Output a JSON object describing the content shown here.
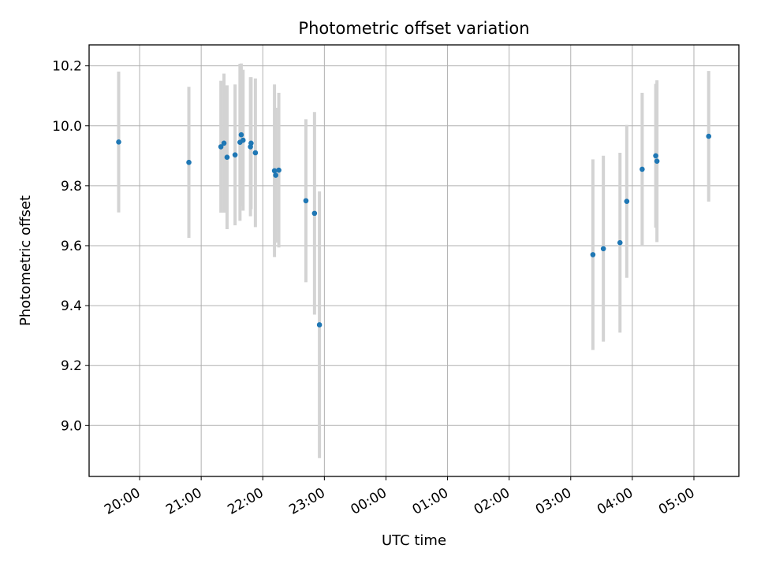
{
  "chart_data": {
    "type": "scatter",
    "title": "Photometric offset variation",
    "xlabel": "UTC time",
    "ylabel": "Photometric offset",
    "x_ticks": [
      {
        "t": -4,
        "label": "20:00"
      },
      {
        "t": -3,
        "label": "21:00"
      },
      {
        "t": -2,
        "label": "22:00"
      },
      {
        "t": -1,
        "label": "23:00"
      },
      {
        "t": 0,
        "label": "00:00"
      },
      {
        "t": 1,
        "label": "01:00"
      },
      {
        "t": 2,
        "label": "02:00"
      },
      {
        "t": 3,
        "label": "03:00"
      },
      {
        "t": 4,
        "label": "04:00"
      },
      {
        "t": 5,
        "label": "05:00"
      }
    ],
    "y_ticks": [
      {
        "v": 9.0,
        "label": "9.0"
      },
      {
        "v": 9.2,
        "label": "9.2"
      },
      {
        "v": 9.4,
        "label": "9.4"
      },
      {
        "v": 9.6,
        "label": "9.6"
      },
      {
        "v": 9.8,
        "label": "9.8"
      },
      {
        "v": 10.0,
        "label": "10.0"
      },
      {
        "v": 10.2,
        "label": "10.2"
      }
    ],
    "xlim": [
      -4.82,
      5.73
    ],
    "ylim": [
      8.83,
      10.27
    ],
    "grid": true,
    "marker_color": "#1f77b4",
    "errorbar_color": "#d3d3d3",
    "points": [
      {
        "t": -4.34,
        "y": 9.946,
        "err": 0.235
      },
      {
        "t": -3.2,
        "y": 9.878,
        "err": 0.252
      },
      {
        "t": -2.68,
        "y": 9.93,
        "err": 0.22
      },
      {
        "t": -2.63,
        "y": 9.942,
        "err": 0.232
      },
      {
        "t": -2.58,
        "y": 9.895,
        "err": 0.24
      },
      {
        "t": -2.45,
        "y": 9.903,
        "err": 0.235
      },
      {
        "t": -2.37,
        "y": 9.945,
        "err": 0.262
      },
      {
        "t": -2.35,
        "y": 9.97,
        "err": 0.238
      },
      {
        "t": -2.32,
        "y": 9.952,
        "err": 0.235
      },
      {
        "t": -2.2,
        "y": 9.93,
        "err": 0.232
      },
      {
        "t": -2.19,
        "y": 9.942,
        "err": 0.22
      },
      {
        "t": -2.12,
        "y": 9.91,
        "err": 0.248
      },
      {
        "t": -1.81,
        "y": 9.85,
        "err": 0.288
      },
      {
        "t": -1.79,
        "y": 9.835,
        "err": 0.225
      },
      {
        "t": -1.74,
        "y": 9.852,
        "err": 0.258
      },
      {
        "t": -1.3,
        "y": 9.75,
        "err": 0.272
      },
      {
        "t": -1.16,
        "y": 9.708,
        "err": 0.338
      },
      {
        "t": -1.08,
        "y": 9.336,
        "err": 0.445
      },
      {
        "t": 3.36,
        "y": 9.57,
        "err": 0.318
      },
      {
        "t": 3.53,
        "y": 9.59,
        "err": 0.31
      },
      {
        "t": 3.8,
        "y": 9.61,
        "err": 0.3
      },
      {
        "t": 3.91,
        "y": 9.748,
        "err": 0.255
      },
      {
        "t": 4.16,
        "y": 9.855,
        "err": 0.255
      },
      {
        "t": 4.38,
        "y": 9.9,
        "err": 0.24
      },
      {
        "t": 4.4,
        "y": 9.882,
        "err": 0.27
      },
      {
        "t": 5.24,
        "y": 9.965,
        "err": 0.218
      }
    ]
  }
}
